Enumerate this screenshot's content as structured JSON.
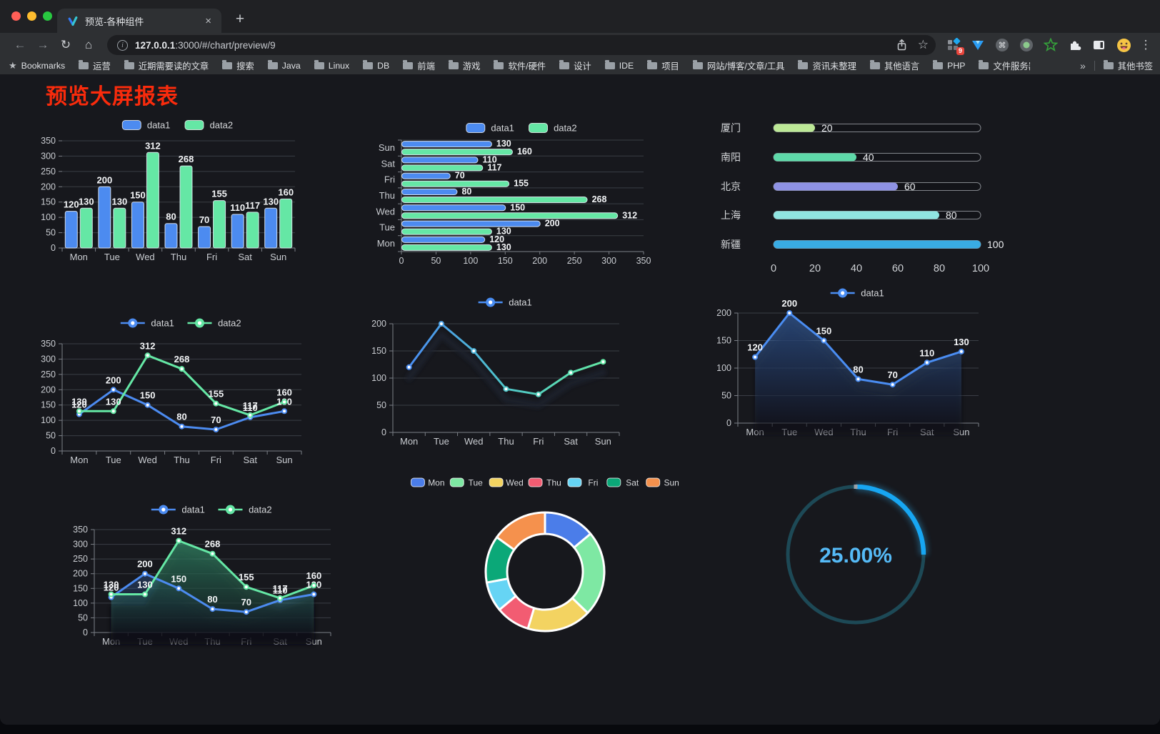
{
  "browser": {
    "tab": {
      "title": "预览-各种组件"
    },
    "address": {
      "host": "127.0.0.1",
      "rest": ":3000/#/chart/preview/9"
    },
    "extension_badge": "9",
    "bookmarks": {
      "label": "Bookmarks",
      "folders": [
        "运营",
        "近期需要读的文章",
        "搜索",
        "Java",
        "Linux",
        "DB",
        "前端",
        "游戏",
        "软件/硬件",
        "设计",
        "IDE",
        "项目",
        "网站/博客/文章/工具",
        "资讯未整理",
        "其他语言",
        "PHP",
        "文件服务器"
      ],
      "overflow": "»",
      "other": "其他书签"
    }
  },
  "icons": {
    "back": "←",
    "forward": "→",
    "reload": "↻",
    "home": "⌂",
    "info": "i",
    "star": "☆",
    "bookmarks_star": "★",
    "close": "×",
    "new_tab": "+",
    "menu": "⋮",
    "command": "⌘"
  },
  "page": {
    "title": "预览大屏报表",
    "title_color": "#fa2b0c"
  },
  "chart_data": [
    {
      "id": "grouped-bar",
      "type": "bar",
      "categories": [
        "Mon",
        "Tue",
        "Wed",
        "Thu",
        "Fri",
        "Sat",
        "Sun"
      ],
      "series": [
        {
          "name": "data1",
          "color": "#4c8bf0",
          "values": [
            120,
            200,
            150,
            80,
            70,
            110,
            130
          ]
        },
        {
          "name": "data2",
          "color": "#65e7a5",
          "values": [
            130,
            130,
            312,
            268,
            155,
            117,
            160
          ]
        }
      ],
      "ylim": [
        0,
        350
      ],
      "ytick_step": 50,
      "legend_position": "top",
      "grid": true
    },
    {
      "id": "grouped-bar-horizontal",
      "type": "bar-horizontal",
      "categories": [
        "Mon",
        "Tue",
        "Wed",
        "Thu",
        "Fri",
        "Sat",
        "Sun"
      ],
      "display_order": "Mon at bottom, Sun at top",
      "series": [
        {
          "name": "data1",
          "color": "#4c8bf0",
          "values": [
            120,
            200,
            150,
            80,
            70,
            110,
            130
          ]
        },
        {
          "name": "data2",
          "color": "#65e7a5",
          "values": [
            130,
            130,
            312,
            268,
            155,
            117,
            160
          ]
        }
      ],
      "xlim": [
        0,
        350
      ],
      "xtick_step": 50,
      "legend_position": "top",
      "grid": true
    },
    {
      "id": "capsule-progress",
      "type": "capsule-bar",
      "categories": [
        "厦门",
        "南阳",
        "北京",
        "上海",
        "新疆"
      ],
      "values": [
        20,
        40,
        60,
        80,
        100
      ],
      "colors": [
        "#bce896",
        "#5ed9a9",
        "#8e92e4",
        "#90e5e1",
        "#39ace4"
      ],
      "xlim": [
        0,
        100
      ],
      "xticks": [
        0,
        20,
        40,
        60,
        80,
        100
      ]
    },
    {
      "id": "grouped-line",
      "type": "line",
      "categories": [
        "Mon",
        "Tue",
        "Wed",
        "Thu",
        "Fri",
        "Sat",
        "Sun"
      ],
      "series": [
        {
          "name": "data1",
          "color": "#4c8bf0",
          "values": [
            120,
            200,
            150,
            80,
            70,
            110,
            130
          ]
        },
        {
          "name": "data2",
          "color": "#65e7a5",
          "values": [
            130,
            130,
            312,
            268,
            155,
            117,
            160
          ]
        }
      ],
      "ylim": [
        0,
        350
      ],
      "ytick_step": 50,
      "legend_position": "top",
      "grid": true
    },
    {
      "id": "gradient-line",
      "type": "line",
      "categories": [
        "Mon",
        "Tue",
        "Wed",
        "Thu",
        "Fri",
        "Sat",
        "Sun"
      ],
      "series": [
        {
          "name": "data1",
          "color": "#4a8df2",
          "gradient": [
            "#4a8df2",
            "#4fc6c9",
            "#63e8a4"
          ],
          "values": [
            120,
            200,
            150,
            80,
            70,
            110,
            130
          ]
        }
      ],
      "ylim": [
        0,
        200
      ],
      "ytick_step": 50,
      "legend_position": "top",
      "grid": true
    },
    {
      "id": "single-area",
      "type": "area",
      "categories": [
        "Mon",
        "Tue",
        "Wed",
        "Thu",
        "Fri",
        "Sat",
        "Sun"
      ],
      "series": [
        {
          "name": "data1",
          "color": "#4a8df2",
          "area": "#3a6ebe",
          "values": [
            120,
            200,
            150,
            80,
            70,
            110,
            130
          ]
        }
      ],
      "ylim": [
        0,
        200
      ],
      "ytick_step": 50,
      "legend_position": "top",
      "grid": true
    },
    {
      "id": "double-area",
      "type": "area",
      "categories": [
        "Mon",
        "Tue",
        "Wed",
        "Thu",
        "Fri",
        "Sat",
        "Sun"
      ],
      "series": [
        {
          "name": "data1",
          "color": "#4c8bf0",
          "area": "#3a6ebe",
          "values": [
            120,
            200,
            150,
            80,
            70,
            110,
            130
          ]
        },
        {
          "name": "data2",
          "color": "#65e7a5",
          "area": "#3fbf8a",
          "values": [
            130,
            130,
            312,
            268,
            155,
            117,
            160
          ]
        }
      ],
      "ylim": [
        0,
        350
      ],
      "ytick_step": 50,
      "legend_position": "top",
      "grid": true
    },
    {
      "id": "donut",
      "type": "pie",
      "categories": [
        "Mon",
        "Tue",
        "Wed",
        "Thu",
        "Fri",
        "Sat",
        "Sun"
      ],
      "values": [
        120,
        200,
        150,
        80,
        70,
        110,
        130
      ],
      "colors": [
        "#4b7de9",
        "#7ee8a3",
        "#f3d361",
        "#f25c72",
        "#66d4f4",
        "#0ba878",
        "#f5914d"
      ],
      "legend_position": "top"
    },
    {
      "id": "gauge",
      "type": "gauge",
      "value": 25,
      "max": 100,
      "label": "25.00%",
      "color": "#17a6f2",
      "track_color": "#1d4956",
      "text_color": "#55baf6"
    }
  ]
}
